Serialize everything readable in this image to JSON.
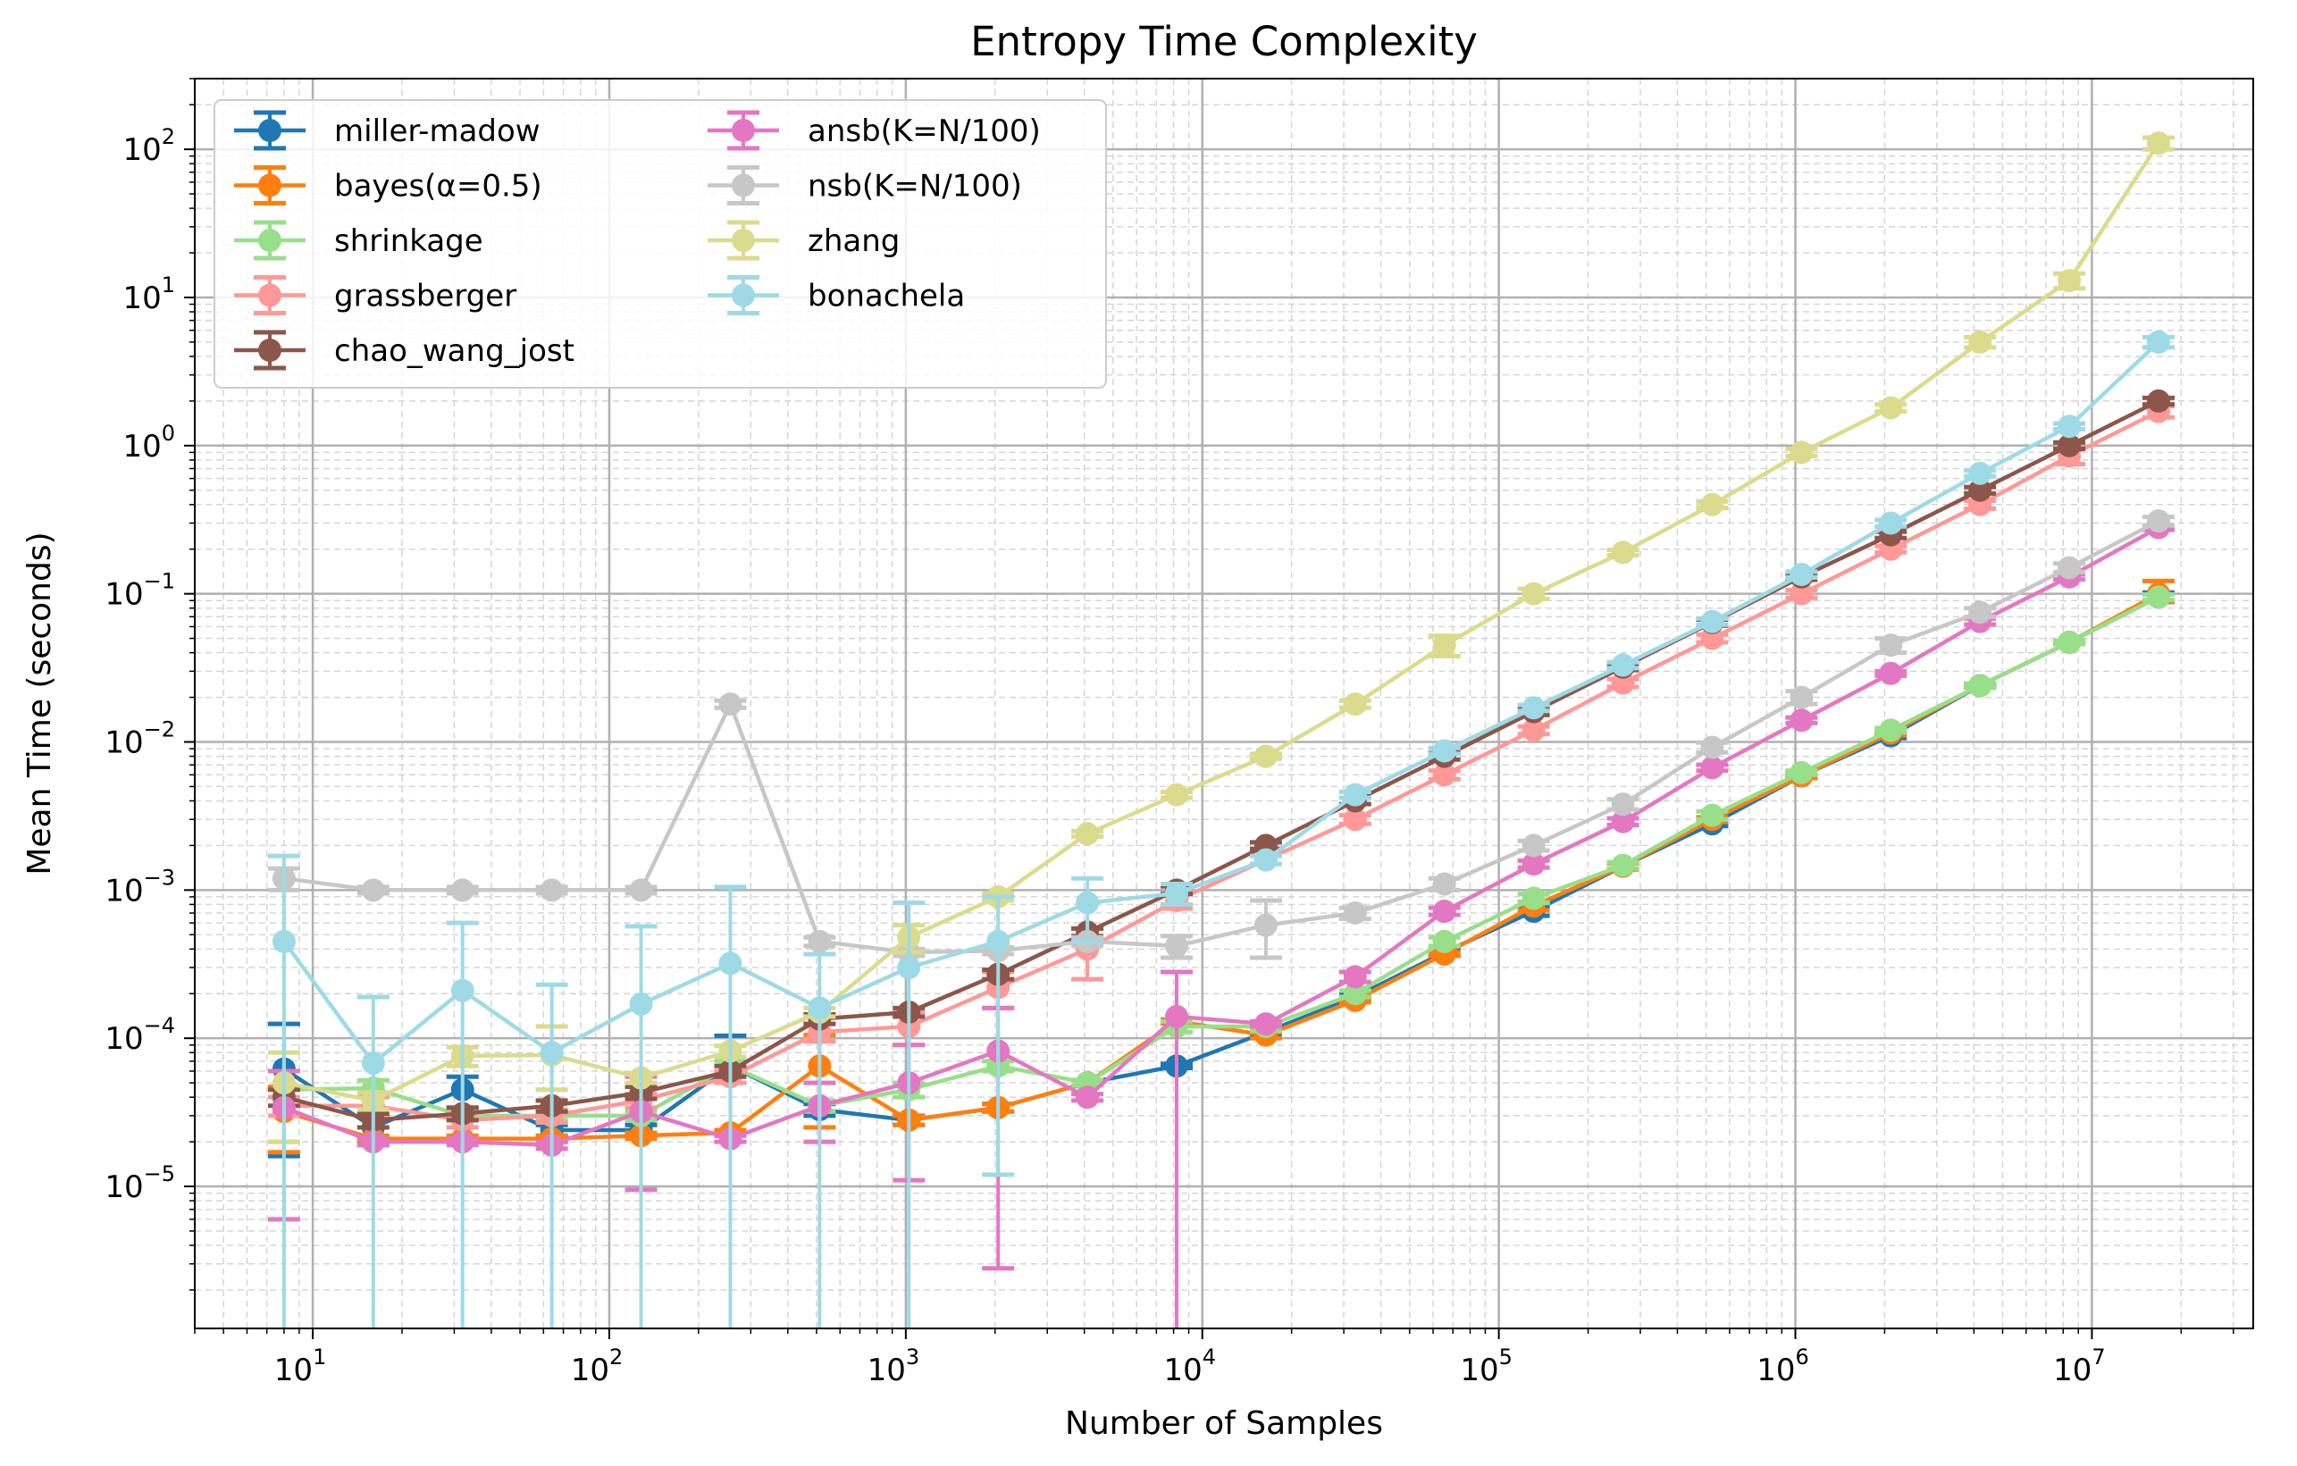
{
  "chart_data": {
    "type": "line",
    "title": "Entropy Time Complexity",
    "xlabel": "Number of Samples",
    "ylabel": "Mean Time (seconds)",
    "xscale": "log",
    "yscale": "log",
    "xlim": [
      4,
      35000000
    ],
    "ylim": [
      1.1e-06,
      300
    ],
    "x_tick_labels": [
      {
        "base": "10",
        "exp": "1",
        "value": 10
      },
      {
        "base": "10",
        "exp": "2",
        "value": 100
      },
      {
        "base": "10",
        "exp": "3",
        "value": 1000
      },
      {
        "base": "10",
        "exp": "4",
        "value": 10000
      },
      {
        "base": "10",
        "exp": "5",
        "value": 100000
      },
      {
        "base": "10",
        "exp": "6",
        "value": 1000000
      },
      {
        "base": "10",
        "exp": "7",
        "value": 10000000
      }
    ],
    "y_tick_labels": [
      {
        "base": "10",
        "exp": "−5",
        "value": 1e-05
      },
      {
        "base": "10",
        "exp": "−4",
        "value": 0.0001
      },
      {
        "base": "10",
        "exp": "−3",
        "value": 0.001
      },
      {
        "base": "10",
        "exp": "−2",
        "value": 0.01
      },
      {
        "base": "10",
        "exp": "−1",
        "value": 0.1
      },
      {
        "base": "10",
        "exp": "0",
        "value": 1
      },
      {
        "base": "10",
        "exp": "1",
        "value": 10
      },
      {
        "base": "10",
        "exp": "2",
        "value": 100
      }
    ],
    "grid": true,
    "legend_position": "upper-left",
    "x": [
      8,
      16,
      32,
      64,
      128,
      256,
      512,
      1024,
      2048,
      4096,
      8192,
      16384,
      32768,
      65536,
      131072,
      262144,
      524288,
      1048576,
      2097152,
      4194304,
      8388608,
      16777216
    ],
    "series": [
      {
        "name": "miller-madow",
        "color": "#1f77b4",
        "values": [
          6.2e-05,
          2.5e-05,
          4.5e-05,
          2.4e-05,
          2.4e-05,
          6.5e-05,
          3.3e-05,
          2.8e-05,
          3.4e-05,
          5e-05,
          6.5e-05,
          0.00011,
          0.00019,
          0.00038,
          0.00072,
          0.00145,
          0.0028,
          0.0059,
          0.011,
          0.024,
          0.047,
          0.095
        ],
        "lower": [
          1.6e-05,
          1.9e-05,
          3.4e-05,
          2.2e-05,
          2.2e-05,
          2.4e-05,
          3e-05,
          2.6e-05,
          3.2e-05,
          4.8e-05,
          6.3e-05,
          0.000105,
          0.000183,
          0.00036,
          0.00067,
          0.00138,
          0.0027,
          0.0057,
          0.0106,
          0.0233,
          0.0457,
          0.088
        ],
        "upper": [
          0.000125,
          3e-05,
          5.5e-05,
          2.6e-05,
          2.6e-05,
          0.000104,
          3.6e-05,
          3e-05,
          3.6e-05,
          5.2e-05,
          6.7e-05,
          0.000115,
          0.000197,
          0.0004,
          0.00077,
          0.00152,
          0.0029,
          0.0061,
          0.0114,
          0.0247,
          0.0483,
          0.102
        ]
      },
      {
        "name": "bayes(α=0.5)",
        "color": "#ff7f0e",
        "values": [
          3.2e-05,
          2.1e-05,
          2.1e-05,
          2.1e-05,
          2.2e-05,
          2.3e-05,
          6.5e-05,
          2.8e-05,
          3.4e-05,
          5e-05,
          0.00013,
          0.000105,
          0.00018,
          0.00037,
          0.00078,
          0.00145,
          0.003,
          0.0059,
          0.0115,
          0.024,
          0.047,
          0.1
        ],
        "lower": [
          1.7e-05,
          2e-05,
          2e-05,
          2e-05,
          2.1e-05,
          2.2e-05,
          2.5e-05,
          2.6e-05,
          3.2e-05,
          4.8e-05,
          0.000126,
          0.0001,
          0.000175,
          0.00036,
          0.00073,
          0.00138,
          0.0029,
          0.0057,
          0.0111,
          0.0233,
          0.0457,
          0.088
        ],
        "upper": [
          4.7e-05,
          2.2e-05,
          2.2e-05,
          2.2e-05,
          2.3e-05,
          2.4e-05,
          0.000105,
          3e-05,
          3.6e-05,
          5.2e-05,
          0.000134,
          0.00011,
          0.000185,
          0.00038,
          0.00083,
          0.00152,
          0.0031,
          0.0061,
          0.0119,
          0.0247,
          0.0483,
          0.122
        ]
      },
      {
        "name": "shrinkage",
        "color": "#98df8a",
        "values": [
          4.5e-05,
          4.6e-05,
          3e-05,
          3e-05,
          3e-05,
          6.5e-05,
          3.5e-05,
          4.5e-05,
          6.5e-05,
          5e-05,
          0.00012,
          0.00012,
          0.0002,
          0.00045,
          0.00088,
          0.00147,
          0.0032,
          0.0062,
          0.012,
          0.024,
          0.047,
          0.095
        ],
        "lower": [
          2e-05,
          4e-05,
          2.8e-05,
          2.8e-05,
          2.8e-05,
          6e-05,
          3.2e-05,
          4e-05,
          6e-05,
          4.8e-05,
          0.00011,
          0.000112,
          0.00019,
          0.00042,
          0.00082,
          0.0014,
          0.003,
          0.006,
          0.0116,
          0.0233,
          0.0457,
          0.091
        ],
        "upper": [
          6e-05,
          5.2e-05,
          3.2e-05,
          3.2e-05,
          3.2e-05,
          7e-05,
          3.8e-05,
          5e-05,
          7e-05,
          5.2e-05,
          0.00013,
          0.000128,
          0.00021,
          0.00048,
          0.00094,
          0.00154,
          0.0034,
          0.0064,
          0.0124,
          0.0247,
          0.0483,
          0.099
        ]
      },
      {
        "name": "grassberger",
        "color": "#ff9896",
        "values": [
          3.5e-05,
          3.5e-05,
          2.8e-05,
          3e-05,
          3.8e-05,
          5.5e-05,
          0.00011,
          0.00012,
          0.00022,
          0.0004,
          0.00085,
          0.0016,
          0.003,
          0.006,
          0.012,
          0.025,
          0.05,
          0.1,
          0.2,
          0.4,
          0.85,
          1.7
        ],
        "lower": [
          3e-05,
          3e-05,
          2.5e-05,
          2.7e-05,
          3.4e-05,
          5e-05,
          9.5e-05,
          9e-05,
          0.00016,
          0.00025,
          0.00075,
          0.0015,
          0.0028,
          0.0056,
          0.0113,
          0.0235,
          0.047,
          0.094,
          0.19,
          0.375,
          0.75,
          1.55
        ],
        "upper": [
          4e-05,
          4e-05,
          3.1e-05,
          3.3e-05,
          4.2e-05,
          6e-05,
          0.000125,
          0.00015,
          0.00028,
          0.00055,
          0.00095,
          0.0017,
          0.0032,
          0.0064,
          0.0127,
          0.0265,
          0.053,
          0.106,
          0.21,
          0.425,
          0.95,
          1.85
        ]
      },
      {
        "name": "chao_wang_jost",
        "color": "#8c564b",
        "values": [
          4e-05,
          2.8e-05,
          3.1e-05,
          3.5e-05,
          4.3e-05,
          6e-05,
          0.000135,
          0.00015,
          0.00027,
          0.00052,
          0.001,
          0.002,
          0.004,
          0.008,
          0.016,
          0.032,
          0.064,
          0.13,
          0.25,
          0.5,
          1.0,
          2.0
        ],
        "lower": [
          3.5e-05,
          2.5e-05,
          2.8e-05,
          3.2e-05,
          3.9e-05,
          5.5e-05,
          0.000125,
          0.00014,
          0.00025,
          0.00049,
          0.00094,
          0.0019,
          0.0038,
          0.0076,
          0.0152,
          0.0305,
          0.061,
          0.124,
          0.238,
          0.475,
          0.95,
          1.9
        ],
        "upper": [
          4.5e-05,
          3.1e-05,
          3.4e-05,
          3.8e-05,
          4.7e-05,
          6.5e-05,
          0.000145,
          0.00016,
          0.00029,
          0.00055,
          0.00106,
          0.0021,
          0.0042,
          0.0084,
          0.0168,
          0.0335,
          0.067,
          0.136,
          0.262,
          0.525,
          1.05,
          2.1
        ]
      },
      {
        "name": "ansb(K=N/100)",
        "color": "#e377c2",
        "values": [
          3.4e-05,
          2e-05,
          2e-05,
          1.9e-05,
          3.2e-05,
          2.1e-05,
          3.5e-05,
          5e-05,
          8.2e-05,
          4e-05,
          0.00014,
          0.000125,
          0.00026,
          0.00072,
          0.0015,
          0.0029,
          0.0067,
          0.014,
          0.029,
          0.065,
          0.13,
          0.28
        ],
        "lower": [
          6e-06,
          1.9e-05,
          1.9e-05,
          1.8e-05,
          9.5e-06,
          2e-05,
          2e-05,
          1.1e-05,
          2.8e-06,
          3.8e-05,
          5e-07,
          0.00012,
          0.00024,
          0.00068,
          0.00142,
          0.00275,
          0.0064,
          0.0134,
          0.028,
          0.062,
          0.125,
          0.27
        ],
        "upper": [
          6e-05,
          2.1e-05,
          2.1e-05,
          2e-05,
          5.5e-05,
          2.2e-05,
          5e-05,
          9e-05,
          0.00016,
          4.2e-05,
          0.00028,
          0.00013,
          0.00028,
          0.00076,
          0.00158,
          0.00305,
          0.007,
          0.0146,
          0.03,
          0.068,
          0.135,
          0.29
        ]
      },
      {
        "name": "nsb(K=N/100)",
        "color": "#c7c7c7",
        "values": [
          0.0012,
          0.001,
          0.001,
          0.001,
          0.001,
          0.018,
          0.00045,
          0.00038,
          0.00039,
          0.00045,
          0.00042,
          0.00058,
          0.0007,
          0.0011,
          0.002,
          0.0038,
          0.0092,
          0.02,
          0.045,
          0.075,
          0.15,
          0.31
        ],
        "lower": [
          0.001,
          0.00095,
          0.00095,
          0.00095,
          0.00095,
          0.017,
          0.00042,
          0.00036,
          0.00037,
          0.00042,
          0.00035,
          0.00035,
          0.00064,
          0.001,
          0.00185,
          0.0035,
          0.0085,
          0.018,
          0.04,
          0.07,
          0.14,
          0.29
        ],
        "upper": [
          0.0014,
          0.00105,
          0.00105,
          0.00105,
          0.00105,
          0.019,
          0.00048,
          0.0004,
          0.00041,
          0.00048,
          0.00049,
          0.00085,
          0.00076,
          0.0012,
          0.00215,
          0.0041,
          0.0099,
          0.022,
          0.05,
          0.08,
          0.16,
          0.33
        ]
      },
      {
        "name": "zhang",
        "color": "#dbdb8d",
        "values": [
          5e-05,
          3.8e-05,
          7.6e-05,
          7.7e-05,
          5.4e-05,
          8.2e-05,
          0.00015,
          0.00048,
          0.0009,
          0.0024,
          0.0044,
          0.008,
          0.018,
          0.045,
          0.1,
          0.19,
          0.4,
          0.9,
          1.8,
          5.0,
          13.0,
          110.0
        ],
        "lower": [
          2e-05,
          3.3e-05,
          6.5e-05,
          4.5e-05,
          5e-05,
          7.5e-05,
          0.00014,
          0.00038,
          0.00085,
          0.0023,
          0.0042,
          0.0077,
          0.017,
          0.038,
          0.092,
          0.182,
          0.38,
          0.85,
          1.7,
          4.6,
          11.5,
          100.0
        ],
        "upper": [
          8e-05,
          4.3e-05,
          8.7e-05,
          0.00012,
          5.8e-05,
          8.9e-05,
          0.00016,
          0.00058,
          0.00095,
          0.0025,
          0.0046,
          0.0083,
          0.019,
          0.052,
          0.108,
          0.198,
          0.42,
          0.95,
          1.9,
          5.4,
          14.5,
          120.0
        ]
      },
      {
        "name": "bonachela",
        "color": "#9edae5",
        "values": [
          0.00045,
          6.8e-05,
          0.00021,
          8e-05,
          0.00017,
          0.00032,
          0.00016,
          0.0003,
          0.00045,
          0.00082,
          0.00095,
          0.0016,
          0.0044,
          0.0087,
          0.017,
          0.033,
          0.065,
          0.135,
          0.3,
          0.65,
          1.35,
          5.0
        ],
        "lower": [
          5e-07,
          5e-07,
          5e-07,
          5e-07,
          5e-07,
          5e-07,
          5e-07,
          5e-07,
          1.2e-05,
          0.00045,
          0.0008,
          0.0015,
          0.0042,
          0.0083,
          0.0162,
          0.0315,
          0.062,
          0.129,
          0.285,
          0.62,
          1.29,
          4.6
        ],
        "upper": [
          0.0017,
          0.00019,
          0.0006,
          0.00023,
          0.00057,
          0.00105,
          0.00037,
          0.00082,
          0.0009,
          0.0012,
          0.0011,
          0.0017,
          0.0046,
          0.0091,
          0.0178,
          0.0345,
          0.068,
          0.141,
          0.315,
          0.68,
          1.41,
          5.4
        ]
      }
    ]
  }
}
